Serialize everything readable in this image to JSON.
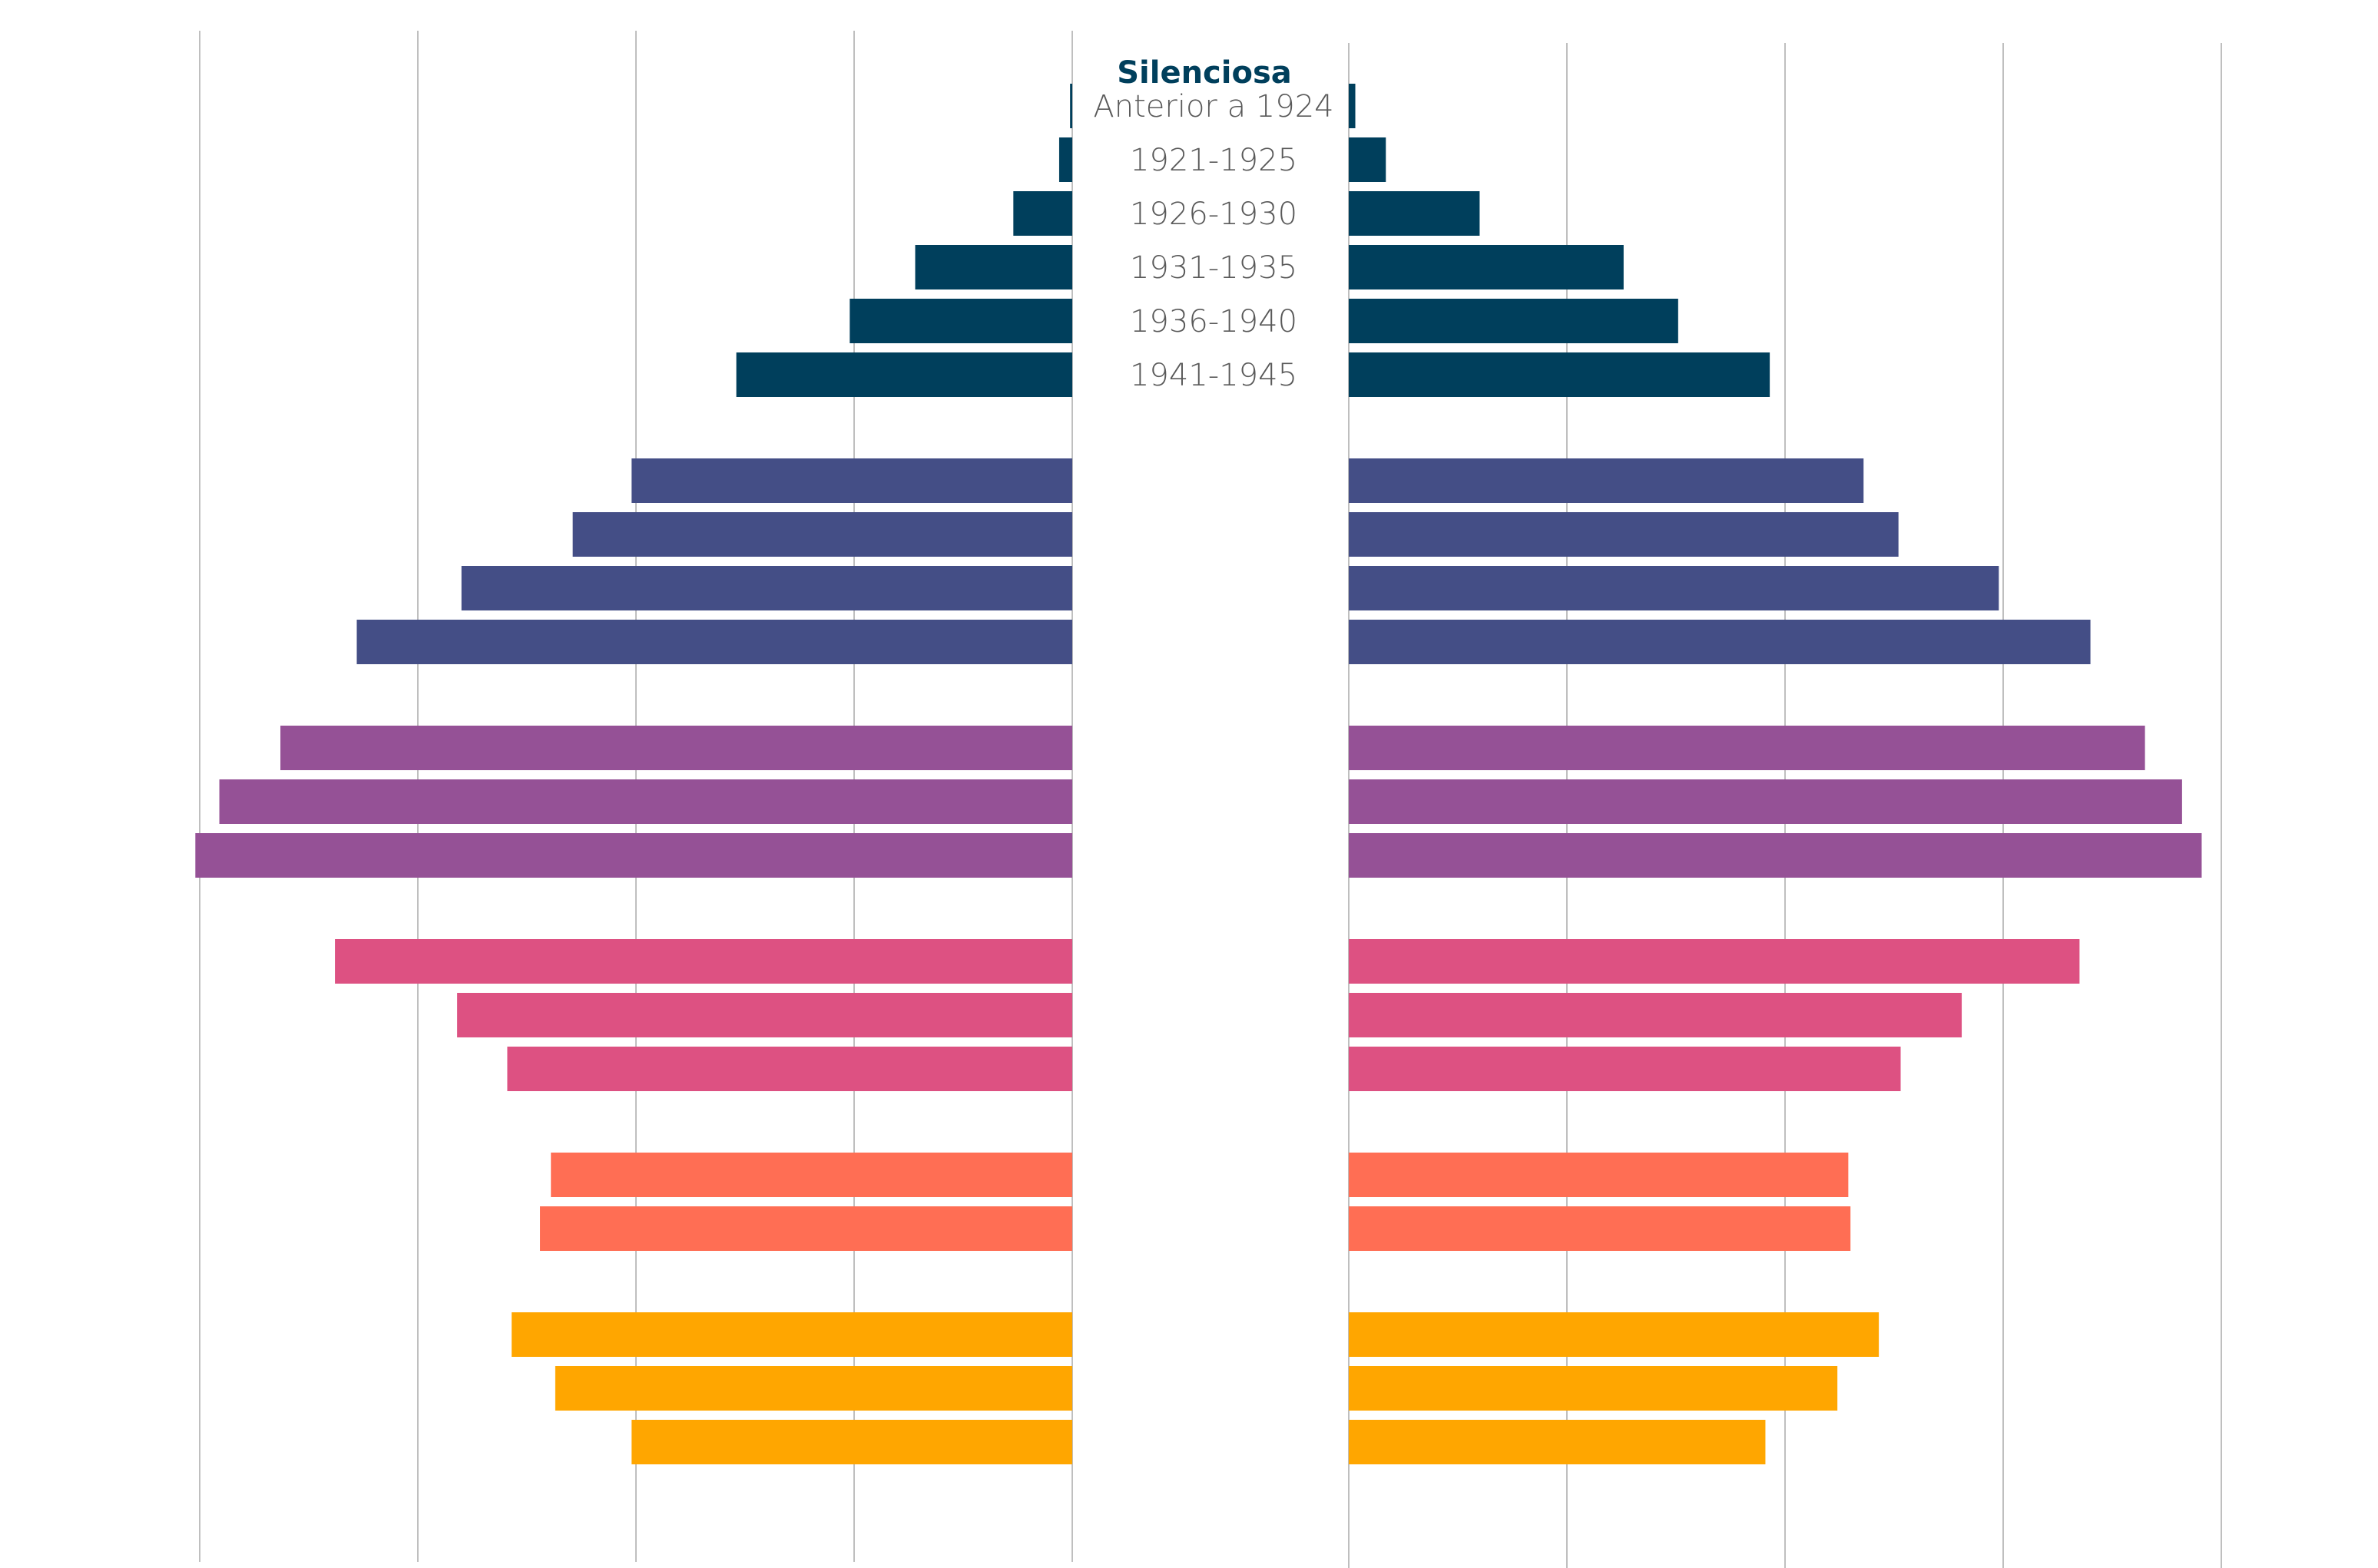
{
  "chart_data": {
    "type": "bar",
    "orientation": "horizontal-butterfly",
    "title": "",
    "xlabel": "",
    "ylabel": "",
    "grid": true,
    "xlim": [
      0,
      40
    ],
    "gridline_step": 10,
    "groups": [
      {
        "name": "Silenciosa",
        "color": "#003f5c",
        "rows": [
          {
            "label": "Anterior a 1924",
            "left": 0.1,
            "right": 0.3
          },
          {
            "label": "1921-1925",
            "left": 0.6,
            "right": 1.7
          },
          {
            "label": "1926-1930",
            "left": 2.7,
            "right": 6.0
          },
          {
            "label": "1931-1935",
            "left": 7.2,
            "right": 12.6
          },
          {
            "label": "1936-1940",
            "left": 10.2,
            "right": 15.1
          },
          {
            "label": "1941-1945",
            "left": 15.4,
            "right": 19.3
          }
        ]
      },
      {
        "name": "",
        "color": "#444e86",
        "rows": [
          {
            "label": "",
            "left": 20.2,
            "right": 23.6
          },
          {
            "label": "",
            "left": 22.9,
            "right": 25.2
          },
          {
            "label": "",
            "left": 28.0,
            "right": 29.8
          },
          {
            "label": "",
            "left": 32.8,
            "right": 34.0
          }
        ]
      },
      {
        "name": "",
        "color": "#955196",
        "rows": [
          {
            "label": "",
            "left": 36.3,
            "right": 36.5
          },
          {
            "label": "",
            "left": 39.1,
            "right": 38.2
          },
          {
            "label": "",
            "left": 40.2,
            "right": 39.1
          }
        ]
      },
      {
        "name": "",
        "color": "#dd5182",
        "rows": [
          {
            "label": "",
            "left": 33.8,
            "right": 33.5
          },
          {
            "label": "",
            "left": 28.2,
            "right": 28.1
          },
          {
            "label": "",
            "left": 25.9,
            "right": 25.3
          }
        ]
      },
      {
        "name": "",
        "color": "#ff6e54",
        "rows": [
          {
            "label": "",
            "left": 23.9,
            "right": 22.9
          },
          {
            "label": "",
            "left": 24.4,
            "right": 23.0
          }
        ]
      },
      {
        "name": "",
        "color": "#ffa600",
        "rows": [
          {
            "label": "",
            "left": 25.7,
            "right": 24.3
          },
          {
            "label": "",
            "left": 23.7,
            "right": 22.4
          },
          {
            "label": "",
            "left": 20.2,
            "right": 19.1
          }
        ]
      }
    ]
  }
}
